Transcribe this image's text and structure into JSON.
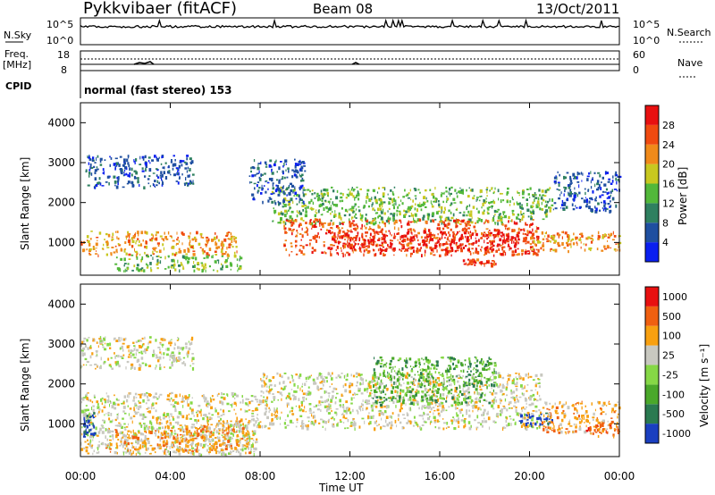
{
  "header": {
    "station": "Pykkvibaer (fitACF)",
    "beam": "Beam 08",
    "date": "13/Oct/2011"
  },
  "status_panels": {
    "nsky_label": "N.Sky",
    "nsky_ticks": [
      "10^5",
      "10^0"
    ],
    "nsearch_label": "N.Search",
    "nsearch_ticks": [
      "10^5",
      "10^0"
    ],
    "freq_label_line1": "Freq.",
    "freq_label_line2": "[MHz]",
    "freq_ticks": [
      "18",
      "8"
    ],
    "nave_label": "Nave",
    "nave_ticks": [
      "60",
      "0"
    ],
    "cpid_label": "CPID",
    "cpid_value": "normal (fast stereo) 153"
  },
  "chart_data": [
    {
      "type": "heatmap",
      "name": "power",
      "ylabel": "Slant Range [km]",
      "yticks": [
        "1000",
        "2000",
        "3000",
        "4000"
      ],
      "ylim": [
        180,
        4500
      ],
      "xlim": [
        0,
        24
      ],
      "colorbar_label": "Power [dB]",
      "colorbar_ticks": [
        "4",
        "8",
        "12",
        "16",
        "20",
        "24",
        "28"
      ],
      "colors": [
        "#0a1ff0",
        "#1f4fa0",
        "#2f8060",
        "#52b83a",
        "#c8c820",
        "#f08a1a",
        "#f04a10",
        "#e81010"
      ],
      "regions": [
        {
          "t0": 0.0,
          "t1": 7.0,
          "r0": 700,
          "r1": 1300,
          "level": 5
        },
        {
          "t0": 0.2,
          "t1": 5.0,
          "r0": 2400,
          "r1": 3200,
          "level": 1
        },
        {
          "t0": 1.5,
          "t1": 7.2,
          "r0": 300,
          "r1": 700,
          "level": 3
        },
        {
          "t0": 8.5,
          "t1": 21.0,
          "r0": 1500,
          "r1": 2400,
          "level": 3
        },
        {
          "t0": 9.0,
          "t1": 20.5,
          "r0": 700,
          "r1": 1600,
          "level": 6
        },
        {
          "t0": 11.0,
          "t1": 19.5,
          "r0": 800,
          "r1": 1300,
          "level": 7
        },
        {
          "t0": 17.0,
          "t1": 18.5,
          "r0": 450,
          "r1": 600,
          "level": 6
        },
        {
          "t0": 20.0,
          "t1": 24.0,
          "r0": 800,
          "r1": 1300,
          "level": 5
        },
        {
          "t0": 21.0,
          "t1": 24.0,
          "r0": 1800,
          "r1": 2800,
          "level": 1
        },
        {
          "t0": 7.5,
          "t1": 10.0,
          "r0": 2000,
          "r1": 3100,
          "level": 1
        }
      ]
    },
    {
      "type": "heatmap",
      "name": "velocity",
      "ylabel": "Slant Range [km]",
      "yticks": [
        "1000",
        "2000",
        "3000",
        "4000"
      ],
      "ylim": [
        180,
        4500
      ],
      "xlim": [
        0,
        24
      ],
      "colorbar_label": "Velocity [m s⁻¹]",
      "colorbar_ticks": [
        "1000",
        "500",
        "100",
        "25",
        "-25",
        "-100",
        "-500",
        "-1000"
      ],
      "colors": [
        "#1a3fc0",
        "#2a7a50",
        "#4aa82a",
        "#86d846",
        "#c8c8c0",
        "#f8a010",
        "#f06010",
        "#e81010"
      ],
      "regions": [
        {
          "t0": 0.0,
          "t1": 8.0,
          "r0": 250,
          "r1": 1800,
          "level": 4
        },
        {
          "t0": 0.0,
          "t1": 5.0,
          "r0": 2400,
          "r1": 3200,
          "level": 4
        },
        {
          "t0": 1.0,
          "t1": 7.5,
          "r0": 300,
          "r1": 900,
          "level": 5
        },
        {
          "t0": 3.5,
          "t1": 7.5,
          "r0": 600,
          "r1": 1100,
          "level": 5
        },
        {
          "t0": 8.0,
          "t1": 20.5,
          "r0": 900,
          "r1": 2300,
          "level": 4
        },
        {
          "t0": 13.0,
          "t1": 18.5,
          "r0": 1500,
          "r1": 2700,
          "level": 2
        },
        {
          "t0": 19.5,
          "t1": 21.0,
          "r0": 1000,
          "r1": 1300,
          "level": 0
        },
        {
          "t0": 20.5,
          "t1": 24.0,
          "r0": 800,
          "r1": 1600,
          "level": 5
        },
        {
          "t0": 22.5,
          "t1": 24.0,
          "r0": 700,
          "r1": 1100,
          "level": 6
        },
        {
          "t0": 0.1,
          "t1": 0.6,
          "r0": 700,
          "r1": 1300,
          "level": 0
        }
      ]
    }
  ],
  "xaxis": {
    "label": "Time UT",
    "ticks": [
      "00:00",
      "04:00",
      "08:00",
      "12:00",
      "16:00",
      "20:00",
      "00:00"
    ]
  }
}
